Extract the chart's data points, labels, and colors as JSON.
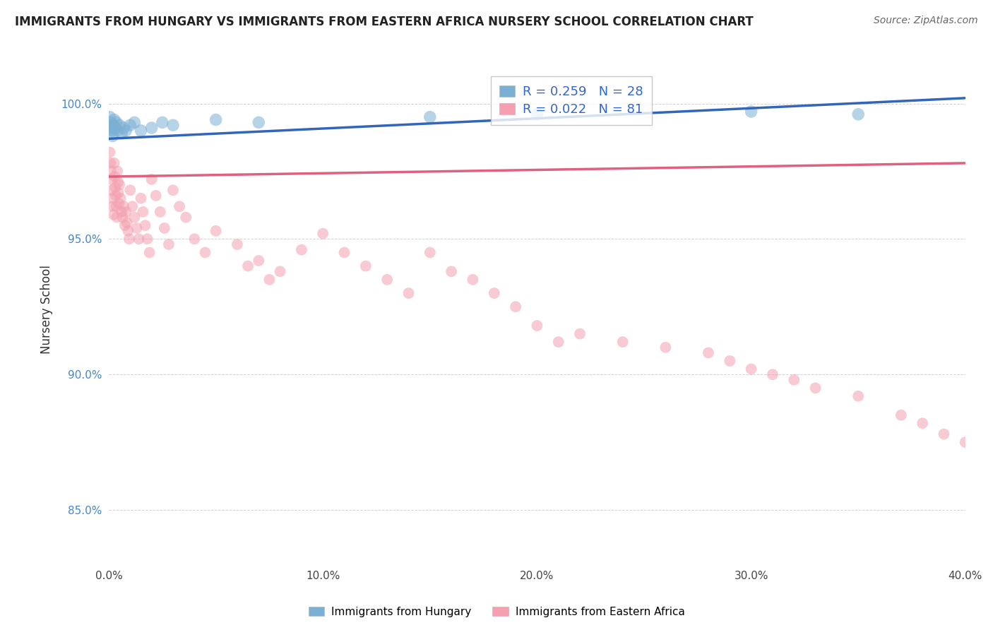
{
  "title": "IMMIGRANTS FROM HUNGARY VS IMMIGRANTS FROM EASTERN AFRICA NURSERY SCHOOL CORRELATION CHART",
  "source": "Source: ZipAtlas.com",
  "ylabel": "Nursery School",
  "xlim": [
    0.0,
    40.0
  ],
  "ylim": [
    83.0,
    101.8
  ],
  "yticks": [
    85.0,
    90.0,
    95.0,
    100.0
  ],
  "ytick_labels": [
    "85.0%",
    "90.0%",
    "95.0%",
    "100.0%"
  ],
  "xticks": [
    0.0,
    10.0,
    20.0,
    30.0,
    40.0
  ],
  "xtick_labels": [
    "0.0%",
    "10.0%",
    "20.0%",
    "30.0%",
    "40.0%"
  ],
  "blue_R": 0.259,
  "blue_N": 28,
  "pink_R": 0.022,
  "pink_N": 81,
  "blue_color": "#7BAFD4",
  "pink_color": "#F4A0B0",
  "blue_line_color": "#3366BB",
  "pink_line_color": "#E06080",
  "legend_label_blue": "Immigrants from Hungary",
  "legend_label_pink": "Immigrants from Eastern Africa",
  "blue_x": [
    0.05,
    0.08,
    0.1,
    0.12,
    0.15,
    0.18,
    0.2,
    0.22,
    0.25,
    0.3,
    0.35,
    0.4,
    0.5,
    0.6,
    0.7,
    0.8,
    1.0,
    1.2,
    1.5,
    2.0,
    2.5,
    3.0,
    5.0,
    7.0,
    15.0,
    20.0,
    30.0,
    35.0
  ],
  "blue_y": [
    99.5,
    99.2,
    99.3,
    99.0,
    99.1,
    98.8,
    99.2,
    99.0,
    99.4,
    99.1,
    99.3,
    99.0,
    99.2,
    98.9,
    99.1,
    99.0,
    99.2,
    99.3,
    99.0,
    99.1,
    99.3,
    99.2,
    99.4,
    99.3,
    99.5,
    99.6,
    99.7,
    99.6
  ],
  "pink_x": [
    0.05,
    0.08,
    0.1,
    0.12,
    0.15,
    0.18,
    0.2,
    0.22,
    0.25,
    0.28,
    0.3,
    0.33,
    0.35,
    0.38,
    0.4,
    0.43,
    0.45,
    0.48,
    0.5,
    0.55,
    0.6,
    0.65,
    0.7,
    0.75,
    0.8,
    0.85,
    0.9,
    0.95,
    1.0,
    1.1,
    1.2,
    1.3,
    1.4,
    1.5,
    1.6,
    1.7,
    1.8,
    1.9,
    2.0,
    2.2,
    2.4,
    2.6,
    2.8,
    3.0,
    3.3,
    3.6,
    4.0,
    4.5,
    5.0,
    6.0,
    7.0,
    8.0,
    9.0,
    10.0,
    11.0,
    12.0,
    13.0,
    14.0,
    15.0,
    16.0,
    17.0,
    18.0,
    19.0,
    20.0,
    22.0,
    24.0,
    26.0,
    28.0,
    29.0,
    30.0,
    31.0,
    32.0,
    33.0,
    35.0,
    37.0,
    38.0,
    39.0,
    40.0,
    6.5,
    7.5,
    21.0
  ],
  "pink_y": [
    98.2,
    97.8,
    97.5,
    97.2,
    96.8,
    96.5,
    96.2,
    95.9,
    97.8,
    97.3,
    96.9,
    96.6,
    96.2,
    95.8,
    97.5,
    97.1,
    96.7,
    96.3,
    97.0,
    96.5,
    96.0,
    95.8,
    96.2,
    95.5,
    96.0,
    95.6,
    95.3,
    95.0,
    96.8,
    96.2,
    95.8,
    95.4,
    95.0,
    96.5,
    96.0,
    95.5,
    95.0,
    94.5,
    97.2,
    96.6,
    96.0,
    95.4,
    94.8,
    96.8,
    96.2,
    95.8,
    95.0,
    94.5,
    95.3,
    94.8,
    94.2,
    93.8,
    94.6,
    95.2,
    94.5,
    94.0,
    93.5,
    93.0,
    94.5,
    93.8,
    93.5,
    93.0,
    92.5,
    91.8,
    91.5,
    91.2,
    91.0,
    90.8,
    90.5,
    90.2,
    90.0,
    89.8,
    89.5,
    89.2,
    88.5,
    88.2,
    87.8,
    87.5,
    94.0,
    93.5,
    91.2
  ]
}
